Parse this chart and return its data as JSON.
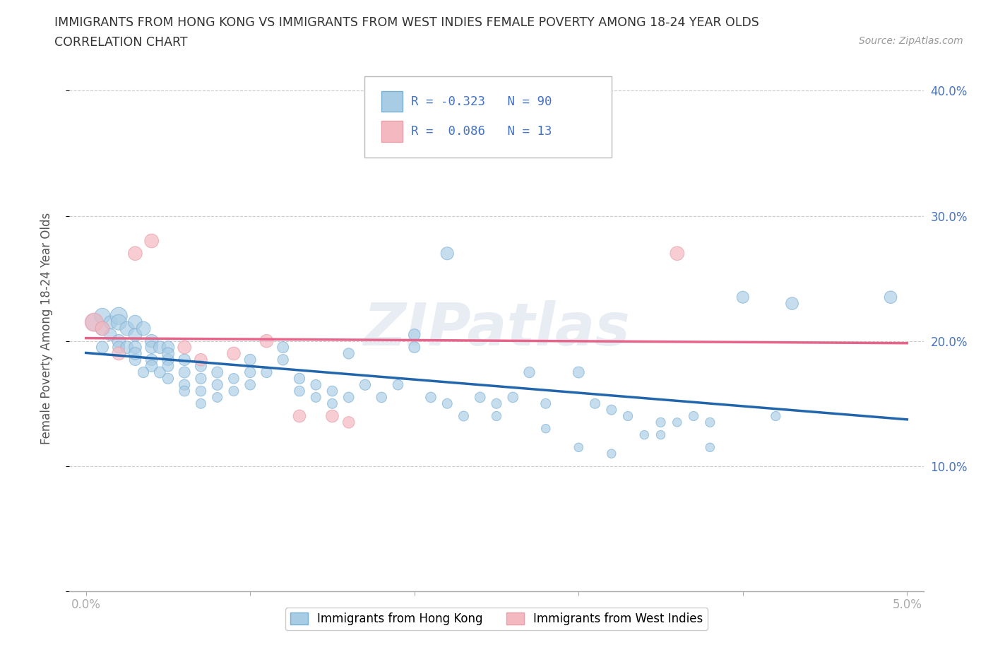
{
  "title_line1": "IMMIGRANTS FROM HONG KONG VS IMMIGRANTS FROM WEST INDIES FEMALE POVERTY AMONG 18-24 YEAR OLDS",
  "title_line2": "CORRELATION CHART",
  "source_text": "Source: ZipAtlas.com",
  "ylabel": "Female Poverty Among 18-24 Year Olds",
  "xlim": [
    -0.001,
    0.051
  ],
  "ylim": [
    0.0,
    0.42
  ],
  "xticks": [
    0.0,
    0.01,
    0.02,
    0.03,
    0.04,
    0.05
  ],
  "xticklabels_sparse": {
    "0": "0.0%",
    "5": "5.0%"
  },
  "yticks_left": [
    0.0,
    0.1,
    0.2,
    0.3,
    0.4
  ],
  "yticks_right": [
    0.1,
    0.2,
    0.3,
    0.4
  ],
  "yticklabels_right": [
    "10.0%",
    "20.0%",
    "30.0%",
    "40.0%"
  ],
  "watermark": "ZIPatlas",
  "legend_label1": "Immigrants from Hong Kong",
  "legend_label2": "Immigrants from West Indies",
  "r1": -0.323,
  "n1": 90,
  "r2": 0.086,
  "n2": 13,
  "color_hk": "#a8cce4",
  "color_wi": "#f4b8c1",
  "line_color_hk": "#2166ac",
  "line_color_wi": "#e8638a",
  "hk_x": [
    0.0005,
    0.001,
    0.001,
    0.0015,
    0.0015,
    0.001,
    0.002,
    0.002,
    0.0025,
    0.002,
    0.002,
    0.003,
    0.003,
    0.0025,
    0.003,
    0.003,
    0.0035,
    0.003,
    0.004,
    0.004,
    0.004,
    0.0045,
    0.004,
    0.0035,
    0.005,
    0.005,
    0.0045,
    0.005,
    0.005,
    0.005,
    0.006,
    0.006,
    0.006,
    0.006,
    0.007,
    0.007,
    0.007,
    0.007,
    0.008,
    0.008,
    0.008,
    0.009,
    0.009,
    0.01,
    0.01,
    0.01,
    0.011,
    0.012,
    0.012,
    0.013,
    0.013,
    0.014,
    0.014,
    0.015,
    0.015,
    0.016,
    0.017,
    0.018,
    0.019,
    0.02,
    0.02,
    0.021,
    0.022,
    0.023,
    0.024,
    0.025,
    0.026,
    0.027,
    0.028,
    0.03,
    0.031,
    0.032,
    0.033,
    0.035,
    0.035,
    0.037,
    0.038,
    0.04,
    0.042,
    0.043,
    0.022,
    0.016,
    0.025,
    0.028,
    0.03,
    0.032,
    0.034,
    0.036,
    0.038,
    0.049
  ],
  "hk_y": [
    0.215,
    0.22,
    0.21,
    0.215,
    0.205,
    0.195,
    0.22,
    0.215,
    0.21,
    0.2,
    0.195,
    0.215,
    0.205,
    0.195,
    0.195,
    0.185,
    0.21,
    0.19,
    0.2,
    0.195,
    0.185,
    0.195,
    0.18,
    0.175,
    0.195,
    0.185,
    0.175,
    0.19,
    0.18,
    0.17,
    0.185,
    0.175,
    0.165,
    0.16,
    0.18,
    0.17,
    0.16,
    0.15,
    0.175,
    0.165,
    0.155,
    0.17,
    0.16,
    0.185,
    0.175,
    0.165,
    0.175,
    0.195,
    0.185,
    0.17,
    0.16,
    0.165,
    0.155,
    0.16,
    0.15,
    0.155,
    0.165,
    0.155,
    0.165,
    0.205,
    0.195,
    0.155,
    0.15,
    0.14,
    0.155,
    0.15,
    0.155,
    0.175,
    0.15,
    0.175,
    0.15,
    0.145,
    0.14,
    0.135,
    0.125,
    0.14,
    0.135,
    0.235,
    0.14,
    0.23,
    0.27,
    0.19,
    0.14,
    0.13,
    0.115,
    0.11,
    0.125,
    0.135,
    0.115,
    0.235
  ],
  "hk_sizes": [
    300,
    250,
    200,
    180,
    150,
    150,
    300,
    250,
    200,
    180,
    150,
    200,
    180,
    160,
    160,
    140,
    200,
    160,
    180,
    160,
    140,
    160,
    140,
    120,
    160,
    140,
    130,
    150,
    130,
    120,
    140,
    130,
    120,
    110,
    130,
    120,
    110,
    100,
    130,
    120,
    100,
    110,
    100,
    130,
    120,
    110,
    120,
    130,
    120,
    120,
    110,
    110,
    100,
    110,
    100,
    110,
    120,
    110,
    110,
    140,
    130,
    110,
    100,
    100,
    110,
    100,
    110,
    120,
    100,
    130,
    100,
    100,
    90,
    90,
    80,
    90,
    90,
    150,
    90,
    160,
    170,
    120,
    90,
    80,
    80,
    80,
    80,
    80,
    80,
    160
  ],
  "wi_x": [
    0.0005,
    0.001,
    0.002,
    0.003,
    0.004,
    0.006,
    0.007,
    0.009,
    0.011,
    0.013,
    0.015,
    0.016,
    0.036
  ],
  "wi_y": [
    0.215,
    0.21,
    0.19,
    0.27,
    0.28,
    0.195,
    0.185,
    0.19,
    0.2,
    0.14,
    0.14,
    0.135,
    0.27
  ],
  "wi_sizes": [
    350,
    200,
    180,
    200,
    200,
    180,
    160,
    180,
    180,
    160,
    160,
    140,
    200
  ]
}
